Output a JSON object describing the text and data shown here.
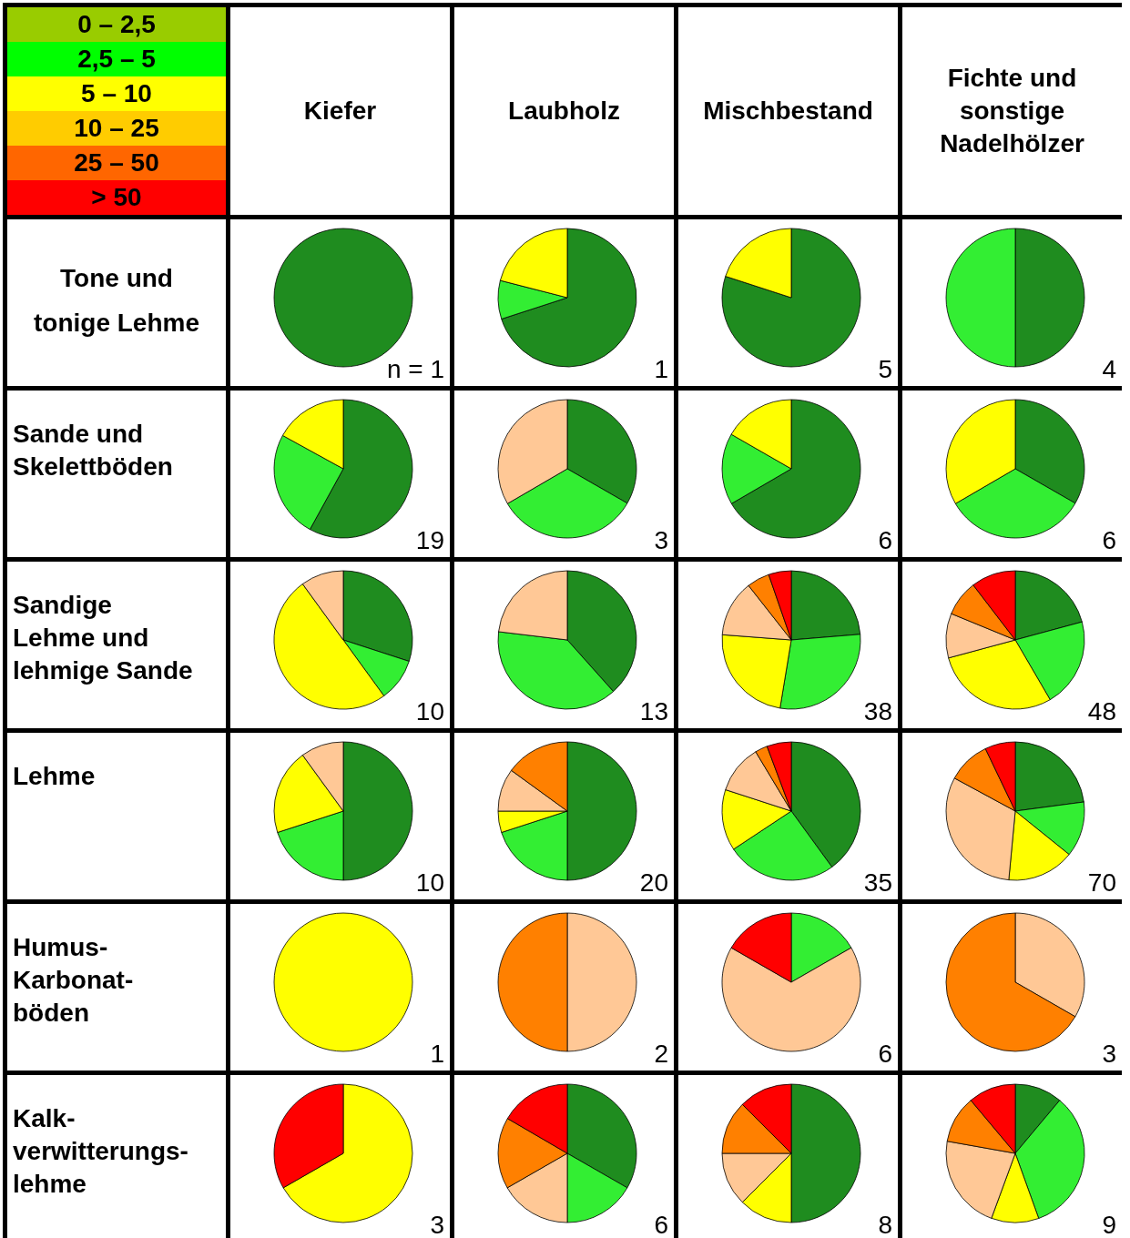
{
  "chart_data": [
    {
      "type": "other",
      "categories": [
        "0 – 2,5",
        "2,5 – 5",
        "5 – 10",
        "10 – 25",
        "25 – 50",
        "> 50"
      ],
      "colors": [
        "#99cc00",
        "#00ff00",
        "#ffff00",
        "#ffcc00",
        "#ff6600",
        "#ff0000"
      ]
    },
    {
      "type": "other",
      "categories": [
        "Kiefer",
        "Laubholz",
        "Mischbestand",
        "Fichte und\nsonstige\nNadelhölzer"
      ],
      "y_categories": [
        "Tone und\ntonige Lehme",
        "Sande und\nSkelettböden",
        "Sandige\nLehme und\nlehmige Sande",
        "Lehme",
        "Humus-\nKarbonat-\nböden",
        "Kalk-\nverwitterungs-\nlehme"
      ]
    },
    {
      "type": "pie",
      "categories": [
        null,
        null,
        null,
        null,
        null,
        null
      ],
      "values": [
        100,
        0,
        0,
        0,
        0,
        0
      ],
      "colors": [
        "#1f8c1f",
        "#33ee33",
        "#ffff00",
        "#ffc896",
        "#ff8000",
        "#ff0000"
      ],
      "annotations": [
        "n = 1"
      ]
    },
    {
      "type": "pie",
      "categories": [
        null,
        null,
        null,
        null,
        null,
        null
      ],
      "values": [
        70,
        9,
        21,
        0,
        0,
        0
      ],
      "colors": [
        "#1f8c1f",
        "#33ee33",
        "#ffff00",
        "#ffc896",
        "#ff8000",
        "#ff0000"
      ],
      "annotations": [
        "1"
      ]
    },
    {
      "type": "pie",
      "categories": [
        null,
        null,
        null,
        null,
        null,
        null
      ],
      "values": [
        80,
        0,
        20,
        0,
        0,
        0
      ],
      "colors": [
        "#1f8c1f",
        "#33ee33",
        "#ffff00",
        "#ffc896",
        "#ff8000",
        "#ff0000"
      ],
      "annotations": [
        "5"
      ]
    },
    {
      "type": "pie",
      "categories": [
        null,
        null,
        null,
        null,
        null,
        null
      ],
      "values": [
        50,
        50,
        0,
        0,
        0,
        0
      ],
      "colors": [
        "#1f8c1f",
        "#33ee33",
        "#ffff00",
        "#ffc896",
        "#ff8000",
        "#ff0000"
      ],
      "annotations": [
        "4"
      ]
    },
    {
      "type": "pie",
      "categories": [
        null,
        null,
        null,
        null,
        null,
        null
      ],
      "values": [
        58,
        25,
        17,
        0,
        0,
        0
      ],
      "colors": [
        "#1f8c1f",
        "#33ee33",
        "#ffff00",
        "#ffc896",
        "#ff8000",
        "#ff0000"
      ],
      "annotations": [
        "19"
      ]
    },
    {
      "type": "pie",
      "categories": [
        null,
        null,
        null,
        null,
        null,
        null
      ],
      "values": [
        33.3,
        33.3,
        0,
        33.4,
        0,
        0
      ],
      "colors": [
        "#1f8c1f",
        "#33ee33",
        "#ffff00",
        "#ffc896",
        "#ff8000",
        "#ff0000"
      ],
      "annotations": [
        "3"
      ]
    },
    {
      "type": "pie",
      "categories": [
        null,
        null,
        null,
        null,
        null,
        null
      ],
      "values": [
        66.6,
        16.7,
        16.7,
        0,
        0,
        0
      ],
      "colors": [
        "#1f8c1f",
        "#33ee33",
        "#ffff00",
        "#ffc896",
        "#ff8000",
        "#ff0000"
      ],
      "annotations": [
        "6"
      ]
    },
    {
      "type": "pie",
      "categories": [
        null,
        null,
        null,
        null,
        null,
        null
      ],
      "values": [
        33.3,
        33.3,
        33.4,
        0,
        0,
        0
      ],
      "colors": [
        "#1f8c1f",
        "#33ee33",
        "#ffff00",
        "#ffc896",
        "#ff8000",
        "#ff0000"
      ],
      "annotations": [
        "6"
      ]
    },
    {
      "type": "pie",
      "categories": [
        null,
        null,
        null,
        null,
        null,
        null
      ],
      "values": [
        30,
        10,
        50,
        10,
        0,
        0
      ],
      "colors": [
        "#1f8c1f",
        "#33ee33",
        "#ffff00",
        "#ffc896",
        "#ff8000",
        "#ff0000"
      ],
      "annotations": [
        "10"
      ]
    },
    {
      "type": "pie",
      "categories": [
        null,
        null,
        null,
        null,
        null,
        null
      ],
      "values": [
        38.4,
        38.5,
        0,
        23.1,
        0,
        0
      ],
      "colors": [
        "#1f8c1f",
        "#33ee33",
        "#ffff00",
        "#ffc896",
        "#ff8000",
        "#ff0000"
      ],
      "annotations": [
        "13"
      ]
    },
    {
      "type": "pie",
      "categories": [
        null,
        null,
        null,
        null,
        null,
        null
      ],
      "values": [
        23.7,
        28.9,
        23.6,
        13.2,
        5.3,
        5.3
      ],
      "colors": [
        "#1f8c1f",
        "#33ee33",
        "#ffff00",
        "#ffc896",
        "#ff8000",
        "#ff0000"
      ],
      "annotations": [
        "38"
      ]
    },
    {
      "type": "pie",
      "categories": [
        null,
        null,
        null,
        null,
        null,
        null
      ],
      "values": [
        20.8,
        20.8,
        29.2,
        10.4,
        8.4,
        10.4
      ],
      "colors": [
        "#1f8c1f",
        "#33ee33",
        "#ffff00",
        "#ffc896",
        "#ff8000",
        "#ff0000"
      ],
      "annotations": [
        "48"
      ]
    },
    {
      "type": "pie",
      "categories": [
        null,
        null,
        null,
        null,
        null,
        null
      ],
      "values": [
        50,
        20,
        20,
        10,
        0,
        0
      ],
      "colors": [
        "#1f8c1f",
        "#33ee33",
        "#ffff00",
        "#ffc896",
        "#ff8000",
        "#ff0000"
      ],
      "annotations": [
        "10"
      ]
    },
    {
      "type": "pie",
      "categories": [
        null,
        null,
        null,
        null,
        null,
        null
      ],
      "values": [
        50,
        20,
        5,
        10,
        15,
        0
      ],
      "colors": [
        "#1f8c1f",
        "#33ee33",
        "#ffff00",
        "#ffc896",
        "#ff8000",
        "#ff0000"
      ],
      "annotations": [
        "20"
      ]
    },
    {
      "type": "pie",
      "categories": [
        null,
        null,
        null,
        null,
        null,
        null
      ],
      "values": [
        40,
        25.7,
        14.3,
        11.4,
        2.9,
        5.7
      ],
      "colors": [
        "#1f8c1f",
        "#33ee33",
        "#ffff00",
        "#ffc896",
        "#ff8000",
        "#ff0000"
      ],
      "annotations": [
        "35"
      ]
    },
    {
      "type": "pie",
      "categories": [
        null,
        null,
        null,
        null,
        null,
        null
      ],
      "values": [
        22.9,
        12.9,
        15.7,
        31.4,
        10,
        7.1
      ],
      "colors": [
        "#1f8c1f",
        "#33ee33",
        "#ffff00",
        "#ffc896",
        "#ff8000",
        "#ff0000"
      ],
      "annotations": [
        "70"
      ]
    },
    {
      "type": "pie",
      "categories": [
        null,
        null,
        null,
        null,
        null,
        null
      ],
      "values": [
        0,
        0,
        100,
        0,
        0,
        0
      ],
      "colors": [
        "#1f8c1f",
        "#33ee33",
        "#ffff00",
        "#ffc896",
        "#ff8000",
        "#ff0000"
      ],
      "annotations": [
        "1"
      ]
    },
    {
      "type": "pie",
      "categories": [
        null,
        null,
        null,
        null,
        null,
        null
      ],
      "values": [
        0,
        0,
        0,
        50,
        50,
        0
      ],
      "colors": [
        "#1f8c1f",
        "#33ee33",
        "#ffff00",
        "#ffc896",
        "#ff8000",
        "#ff0000"
      ],
      "annotations": [
        "2"
      ]
    },
    {
      "type": "pie",
      "categories": [
        null,
        null,
        null,
        null,
        null,
        null
      ],
      "values": [
        0,
        16.7,
        0,
        66.6,
        0,
        16.7
      ],
      "colors": [
        "#1f8c1f",
        "#33ee33",
        "#ffff00",
        "#ffc896",
        "#ff8000",
        "#ff0000"
      ],
      "annotations": [
        "6"
      ]
    },
    {
      "type": "pie",
      "categories": [
        null,
        null,
        null,
        null,
        null,
        null
      ],
      "values": [
        0,
        0,
        0,
        33.3,
        66.7,
        0
      ],
      "colors": [
        "#1f8c1f",
        "#33ee33",
        "#ffff00",
        "#ffc896",
        "#ff8000",
        "#ff0000"
      ],
      "annotations": [
        "3"
      ]
    },
    {
      "type": "pie",
      "categories": [
        null,
        null,
        null,
        null,
        null,
        null
      ],
      "values": [
        0,
        0,
        66.7,
        0,
        0,
        33.3
      ],
      "colors": [
        "#1f8c1f",
        "#33ee33",
        "#ffff00",
        "#ffc896",
        "#ff8000",
        "#ff0000"
      ],
      "annotations": [
        "3"
      ]
    },
    {
      "type": "pie",
      "categories": [
        null,
        null,
        null,
        null,
        null,
        null
      ],
      "values": [
        33.3,
        16.7,
        0,
        16.7,
        16.7,
        16.6
      ],
      "colors": [
        "#1f8c1f",
        "#33ee33",
        "#ffff00",
        "#ffc896",
        "#ff8000",
        "#ff0000"
      ],
      "annotations": [
        "6"
      ]
    },
    {
      "type": "pie",
      "categories": [
        null,
        null,
        null,
        null,
        null,
        null
      ],
      "values": [
        50,
        0,
        12.5,
        12.5,
        12.5,
        12.5
      ],
      "colors": [
        "#1f8c1f",
        "#33ee33",
        "#ffff00",
        "#ffc896",
        "#ff8000",
        "#ff0000"
      ],
      "annotations": [
        "8"
      ]
    },
    {
      "type": "pie",
      "categories": [
        null,
        null,
        null,
        null,
        null,
        null
      ],
      "values": [
        11.1,
        33.4,
        11.1,
        22.2,
        11.1,
        11.1
      ],
      "colors": [
        "#1f8c1f",
        "#33ee33",
        "#ffff00",
        "#ffc896",
        "#ff8000",
        "#ff0000"
      ],
      "annotations": [
        "9"
      ]
    }
  ]
}
